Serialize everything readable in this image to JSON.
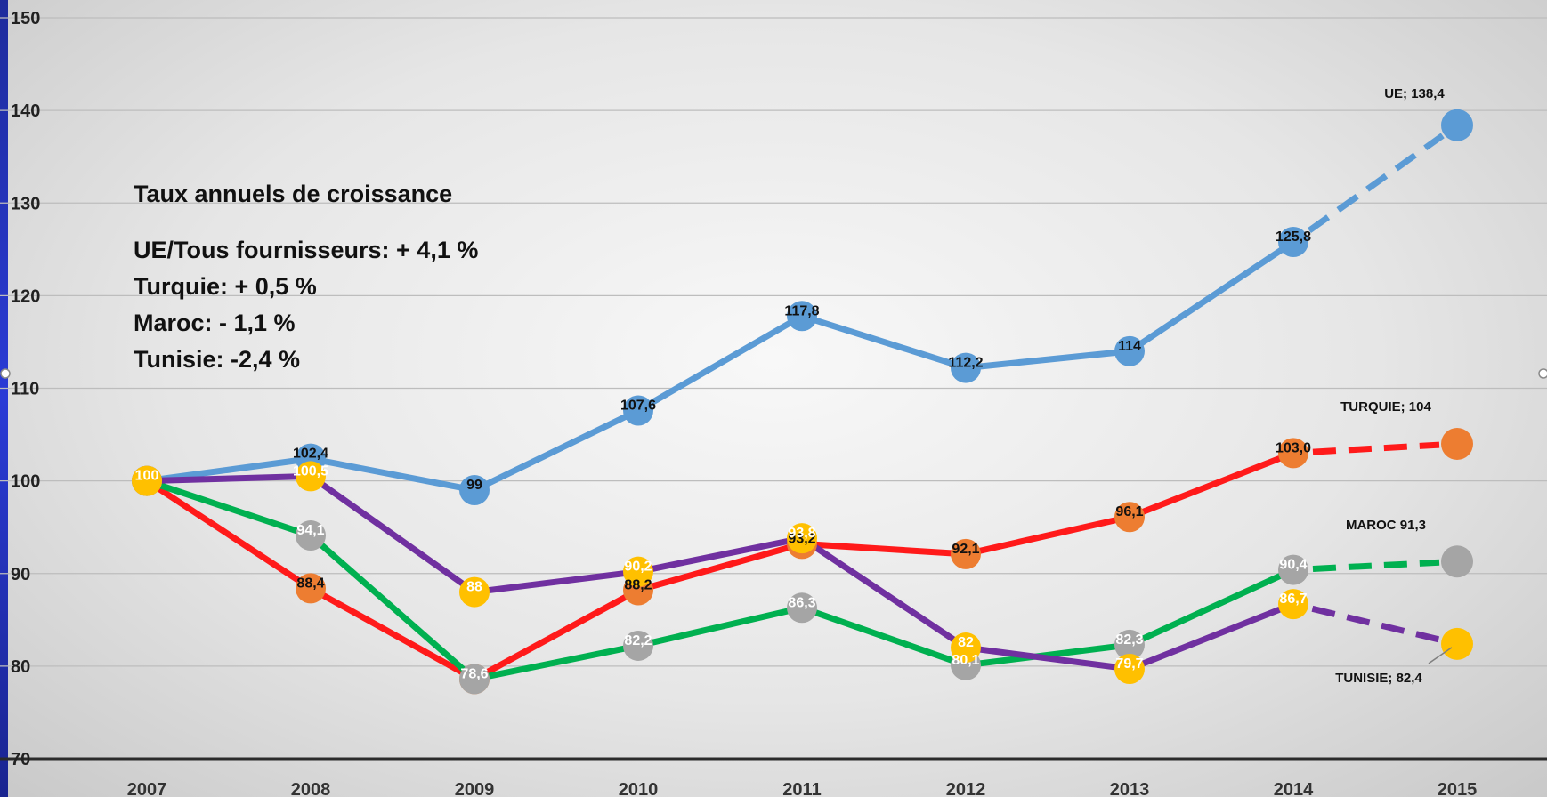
{
  "chart_data": {
    "type": "line",
    "categories": [
      "2007",
      "2008",
      "2009",
      "2010",
      "2011",
      "2012",
      "2013",
      "2014",
      "2015"
    ],
    "ylim": [
      70,
      150
    ],
    "yticks": [
      70,
      80,
      90,
      100,
      110,
      120,
      130,
      140,
      150
    ],
    "grid": true,
    "series": [
      {
        "key": "ue",
        "line_color": "#5b9bd5",
        "values": [
          100,
          102.4,
          99,
          107.6,
          117.8,
          112.2,
          114,
          125.8,
          138.4
        ],
        "labels": [
          "",
          "102,4",
          "99",
          "107,6",
          "117,8",
          "112,2",
          "114",
          "125,8",
          ""
        ],
        "marker_color": "#5b9bd5",
        "label_color": "#111111"
      },
      {
        "key": "turquie",
        "line_color": "#ff1a1a",
        "end_dash_color": "#ff1a1a",
        "values": [
          100,
          88.4,
          78.6,
          88.2,
          93.2,
          92.1,
          96.1,
          103.0,
          104
        ],
        "labels": [
          "",
          "88,4",
          "",
          "88,2",
          "93,2",
          "92,1",
          "96,1",
          "103,0",
          ""
        ],
        "marker_color": "#ed7d31",
        "label_color": "#111111"
      },
      {
        "key": "maroc",
        "line_color": "#00b050",
        "values": [
          100,
          94.1,
          78.6,
          82.2,
          86.3,
          80.1,
          82.3,
          90.4,
          91.3
        ],
        "labels": [
          "",
          "94,1",
          "78,6",
          "82,2",
          "86,3",
          "80,1",
          "82,3",
          "90,4",
          ""
        ],
        "marker_color": "#a5a5a5",
        "label_color": "#ffffff"
      },
      {
        "key": "tunisie",
        "line_color": "#7030a0",
        "values": [
          100,
          100.5,
          88,
          90.2,
          93.8,
          82,
          79.7,
          86.7,
          82.4
        ],
        "labels": [
          "100",
          "100,5",
          "88",
          "90,2",
          "93,8",
          "82",
          "79,7",
          "86,7",
          ""
        ],
        "marker_color": "#ffc000",
        "label_color": "#ffffff"
      }
    ],
    "end_labels": {
      "ue": "UE; 138,4",
      "turquie": "TURQUIE; 104",
      "maroc": "MAROC 91,3",
      "tunisie": "TUNISIE; 82,4"
    },
    "annotation": {
      "title": "Taux annuels de croissance",
      "lines": [
        "UE/Tous fournisseurs:  + 4,1 %",
        "Turquie: + 0,5 %",
        "Maroc: - 1,1 %",
        "Tunisie: -2,4 %"
      ]
    }
  }
}
